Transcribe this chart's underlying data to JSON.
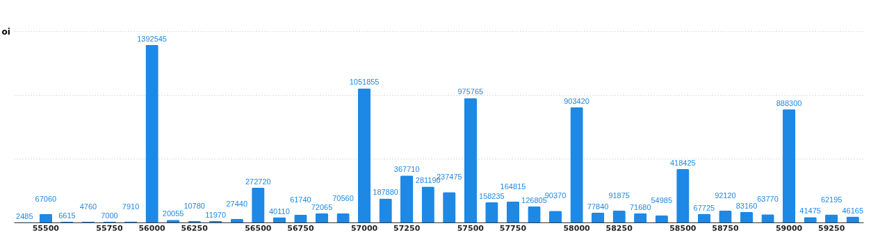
{
  "chart_data": {
    "type": "bar",
    "ylabel": "oi",
    "categories": [
      null,
      "55500",
      null,
      null,
      "55750",
      null,
      "56000",
      null,
      "56250",
      null,
      null,
      "56500",
      null,
      "56750",
      null,
      null,
      "57000",
      null,
      "57250",
      null,
      null,
      "57500",
      null,
      "57750",
      null,
      null,
      "58000",
      null,
      "58250",
      null,
      null,
      "58500",
      null,
      "58750",
      null,
      null,
      "59000",
      null,
      "59250",
      null
    ],
    "values": [
      2485,
      67060,
      6615,
      4760,
      7000,
      7910,
      1392545,
      20055,
      10780,
      11970,
      27440,
      272720,
      40110,
      61740,
      72065,
      70560,
      1051855,
      187880,
      367710,
      281190,
      237475,
      975765,
      158235,
      164815,
      126805,
      90370,
      903420,
      77840,
      91875,
      71680,
      54985,
      418425,
      67725,
      92120,
      83160,
      63770,
      888300,
      41475,
      62195,
      46165
    ],
    "color": "#1e88e5",
    "data_labels": true,
    "ylim": [
      0,
      1500000
    ],
    "yticks": [
      {
        "value": 0,
        "label": null
      },
      {
        "value": 500000,
        "label": null
      },
      {
        "value": 1000000,
        "label": null
      },
      {
        "value": 1500000,
        "label": null
      }
    ],
    "grid": "y",
    "tick_labels": "x"
  }
}
